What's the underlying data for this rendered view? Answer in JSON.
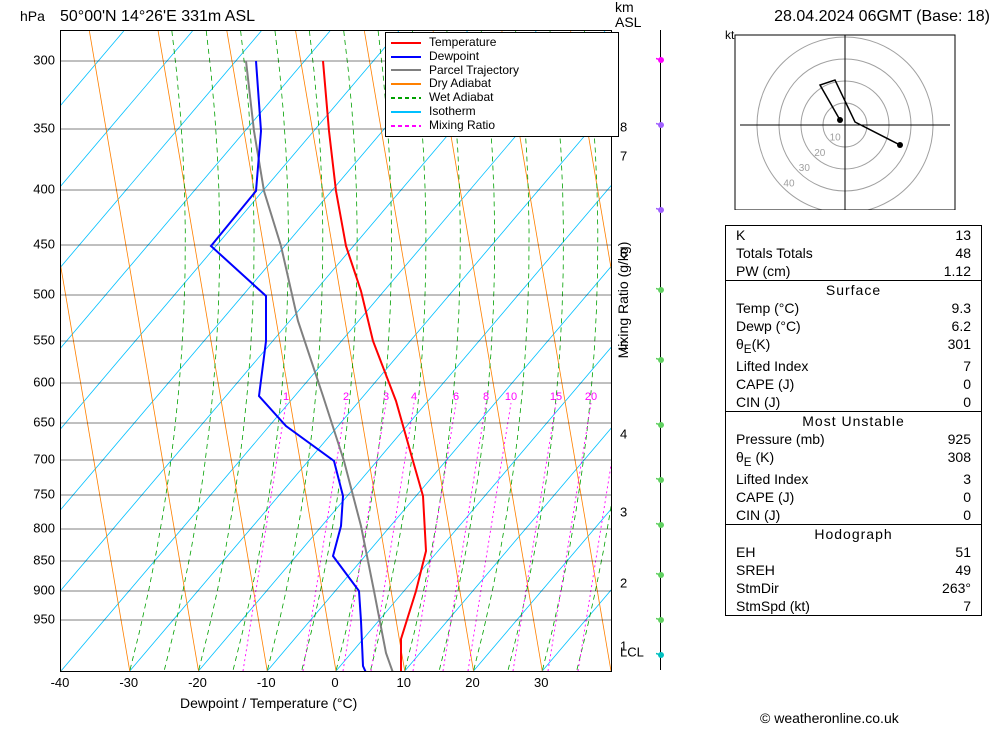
{
  "header": {
    "location": "50°00'N 14°26'E 331m ASL",
    "datetime": "28.04.2024 06GMT (Base: 18)",
    "hpa_label": "hPa",
    "km_asl_label": "km\nASL",
    "kt_label": "kt"
  },
  "axes": {
    "xlabel": "Dewpoint / Temperature (°C)",
    "mixing_ratio_label": "Mixing Ratio (g/kg)",
    "xlim": [
      -40,
      40
    ],
    "xticks": [
      -40,
      -30,
      -20,
      -10,
      0,
      10,
      20,
      30
    ],
    "pressure_ticks": [
      300,
      350,
      400,
      450,
      500,
      550,
      600,
      650,
      700,
      750,
      800,
      850,
      900,
      950
    ],
    "pressure_positions": [
      30,
      98,
      159,
      214,
      264,
      310,
      352,
      392,
      429,
      464,
      498,
      530,
      560,
      589
    ],
    "alt_ticks": [
      1,
      2,
      3,
      4,
      5,
      6,
      7,
      8
    ],
    "alt_positions": [
      616,
      553,
      482,
      404,
      316,
      223,
      126,
      97
    ],
    "lcl_label": "LCL",
    "lcl_pos": 622
  },
  "legend": {
    "items": [
      {
        "label": "Temperature",
        "color": "#ff0000",
        "dash": "none"
      },
      {
        "label": "Dewpoint",
        "color": "#0000ff",
        "dash": "none"
      },
      {
        "label": "Parcel Trajectory",
        "color": "#808080",
        "dash": "none"
      },
      {
        "label": "Dry Adiabat",
        "color": "#ff8000",
        "dash": "none"
      },
      {
        "label": "Wet Adiabat",
        "color": "#00a000",
        "dash": "4,3"
      },
      {
        "label": "Isotherm",
        "color": "#00c0ff",
        "dash": "none"
      },
      {
        "label": "Mixing Ratio",
        "color": "#ff00ff",
        "dash": "2,2"
      }
    ]
  },
  "background_lines": {
    "isotherm_color": "#00c0ff",
    "dry_adiabat_color": "#ff8000",
    "wet_adiabat_color": "#00a000",
    "mixing_ratio_color": "#ff00ff",
    "grid_color": "#000000",
    "mixing_ratio_values": [
      1,
      2,
      3,
      4,
      6,
      8,
      10,
      15,
      20,
      25
    ],
    "mixing_ratio_x_at_600": [
      200,
      260,
      300,
      328,
      370,
      400,
      425,
      470,
      505,
      535
    ]
  },
  "soundings": {
    "temperature": {
      "color": "#ff0000",
      "width": 2,
      "points": [
        [
          340,
          670
        ],
        [
          340,
          608
        ],
        [
          355,
          560
        ],
        [
          365,
          520
        ],
        [
          362,
          465
        ],
        [
          352,
          430
        ],
        [
          335,
          370
        ],
        [
          312,
          310
        ],
        [
          300,
          260
        ],
        [
          285,
          215
        ],
        [
          275,
          160
        ],
        [
          268,
          100
        ],
        [
          262,
          30
        ]
      ]
    },
    "dewpoint": {
      "color": "#0000ff",
      "width": 2,
      "points": [
        [
          318,
          670
        ],
        [
          302,
          635
        ],
        [
          300,
          590
        ],
        [
          298,
          560
        ],
        [
          272,
          525
        ],
        [
          280,
          495
        ],
        [
          282,
          465
        ],
        [
          273,
          430
        ],
        [
          225,
          395
        ],
        [
          198,
          365
        ],
        [
          205,
          310
        ],
        [
          205,
          265
        ],
        [
          150,
          215
        ],
        [
          195,
          160
        ],
        [
          200,
          100
        ],
        [
          195,
          30
        ]
      ]
    },
    "parcel": {
      "color": "#808080",
      "width": 2,
      "points": [
        [
          342,
          670
        ],
        [
          325,
          622
        ],
        [
          313,
          560
        ],
        [
          300,
          495
        ],
        [
          283,
          430
        ],
        [
          262,
          365
        ],
        [
          237,
          290
        ],
        [
          220,
          215
        ],
        [
          203,
          160
        ],
        [
          193,
          100
        ],
        [
          185,
          30
        ]
      ]
    }
  },
  "wind_barbs": {
    "color_levels": [
      {
        "y": 670,
        "color": "#00c0c0"
      },
      {
        "y": 625,
        "color": "#00c0c0"
      },
      {
        "y": 590,
        "color": "#60d060"
      },
      {
        "y": 545,
        "color": "#60d060"
      },
      {
        "y": 495,
        "color": "#60d060"
      },
      {
        "y": 450,
        "color": "#60d060"
      },
      {
        "y": 395,
        "color": "#60d060"
      },
      {
        "y": 330,
        "color": "#60d060"
      },
      {
        "y": 260,
        "color": "#60d060"
      },
      {
        "y": 180,
        "color": "#a060ff"
      },
      {
        "y": 95,
        "color": "#a060ff"
      },
      {
        "y": 30,
        "color": "#ff00ff"
      }
    ]
  },
  "hodograph": {
    "rings": [
      10,
      20,
      30,
      40
    ],
    "ring_color": "#a0a0a0"
  },
  "info": {
    "top": [
      {
        "label": "K",
        "value": "13"
      },
      {
        "label": "Totals Totals",
        "value": "48"
      },
      {
        "label": "PW (cm)",
        "value": "1.12"
      }
    ],
    "surface_header": "Surface",
    "surface": [
      {
        "label": "Temp (°C)",
        "value": "9.3"
      },
      {
        "label": "Dewp (°C)",
        "value": "6.2"
      },
      {
        "label": "θ<sub>E</sub>(K)",
        "value": "301"
      },
      {
        "label": "Lifted Index",
        "value": "7"
      },
      {
        "label": "CAPE (J)",
        "value": "0"
      },
      {
        "label": "CIN (J)",
        "value": "0"
      }
    ],
    "unstable_header": "Most Unstable",
    "unstable": [
      {
        "label": "Pressure (mb)",
        "value": "925"
      },
      {
        "label": "θ<sub>E</sub> (K)",
        "value": "308"
      },
      {
        "label": "Lifted Index",
        "value": "3"
      },
      {
        "label": "CAPE (J)",
        "value": "0"
      },
      {
        "label": "CIN (J)",
        "value": "0"
      }
    ],
    "hodo_header": "Hodograph",
    "hodo": [
      {
        "label": "EH",
        "value": "51"
      },
      {
        "label": "SREH",
        "value": "49"
      },
      {
        "label": "StmDir",
        "value": "263°"
      },
      {
        "label": "StmSpd (kt)",
        "value": "7"
      }
    ]
  },
  "copyright": "© weatheronline.co.uk"
}
